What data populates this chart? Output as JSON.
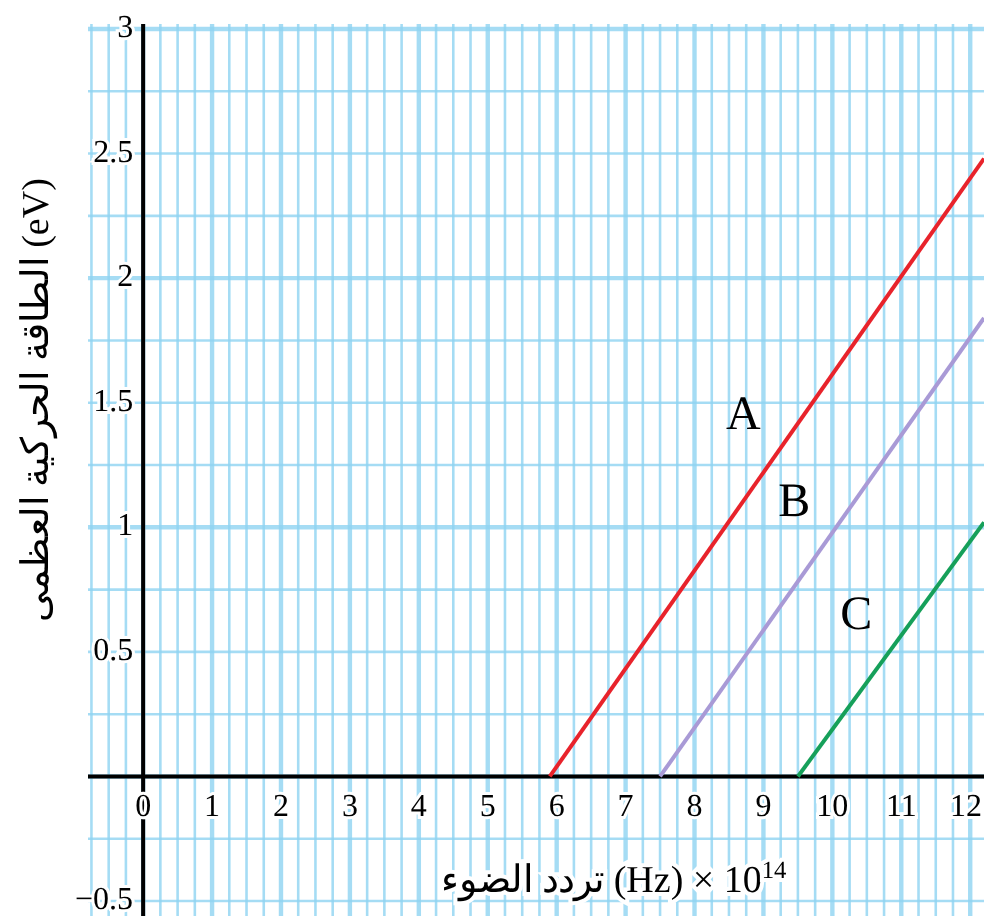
{
  "chart_data": {
    "type": "line",
    "xlabel": "تردد الضوء (Hz) × 10$^{14}$",
    "ylabel": "الطاقة الحركية العظمى (eV)",
    "xlim": [
      -0.8,
      12.2
    ],
    "ylim": [
      -0.56,
      3.02
    ],
    "xticks": [
      0,
      1,
      2,
      3,
      4,
      5,
      6,
      7,
      8,
      9,
      10,
      11,
      12
    ],
    "yticks": [
      {
        "value": -0.5,
        "label": "−0.5"
      },
      0.5,
      1,
      1.5,
      2,
      2.5,
      3
    ],
    "grid": true,
    "marker": "none",
    "line_style": "solid",
    "series": [
      {
        "name": "A",
        "color": "#e8232b",
        "x": [
          5.9,
          12.2
        ],
        "values": [
          0,
          2.48
        ]
      },
      {
        "name": "B",
        "color": "#a99ad6",
        "x": [
          7.5,
          12.2
        ],
        "values": [
          0,
          1.84
        ]
      },
      {
        "name": "C",
        "color": "#16a05a",
        "x": [
          9.5,
          12.2
        ],
        "values": [
          0,
          1.02
        ]
      }
    ]
  }
}
